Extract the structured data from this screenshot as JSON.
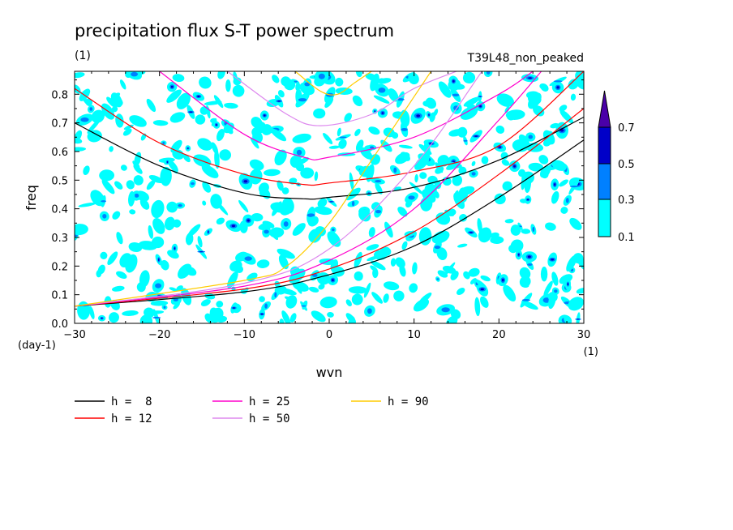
{
  "chart_data": {
    "type": "heatmap",
    "title": "precipitation flux S-T power spectrum",
    "subtitle_left": "(1)",
    "subtitle_right": "T39L48_non_peaked",
    "xlabel": "wvn",
    "ylabel": "freq",
    "x_unit": "(1)",
    "y_unit": "(day-1)",
    "xlim": [
      -30,
      30
    ],
    "ylim": [
      0,
      0.88
    ],
    "x_ticks": [
      -30,
      -20,
      -10,
      0,
      10,
      20,
      30
    ],
    "x_tick_labels": [
      "−30",
      "−20",
      "−10",
      "0",
      "10",
      "20",
      "30"
    ],
    "y_ticks": [
      0,
      0.1,
      0.2,
      0.3,
      0.4,
      0.5,
      0.6,
      0.7,
      0.8
    ],
    "y_tick_labels": [
      "0.0",
      "0.1",
      "0.2",
      "0.3",
      "0.4",
      "0.5",
      "0.6",
      "0.7",
      "0.8"
    ],
    "colorbar": {
      "levels": [
        "0.1",
        "0.3",
        "0.5",
        "0.7"
      ],
      "colors": [
        "#00ffff",
        "#0080ff",
        "#0000c8",
        "#4a00a8"
      ]
    },
    "curves": [
      {
        "name": "h =  8",
        "color": "#000000",
        "h": 8,
        "eig_x": [
          -30,
          -20,
          -10,
          -3,
          0,
          10,
          20,
          30
        ],
        "eig_y": [
          0.7,
          0.55,
          0.455,
          0.435,
          0.44,
          0.475,
          0.57,
          0.72
        ],
        "kelvin_x": [
          -30,
          -10,
          0,
          10,
          20,
          30
        ],
        "kelvin_y": [
          0.06,
          0.11,
          0.17,
          0.27,
          0.44,
          0.64
        ]
      },
      {
        "name": "h = 12",
        "color": "#ff0000",
        "h": 12,
        "eig_x": [
          -30,
          -20,
          -10,
          -3,
          0,
          10,
          20,
          30
        ],
        "eig_y": [
          0.82,
          0.63,
          0.52,
          0.485,
          0.49,
          0.53,
          0.62,
          0.88
        ],
        "kelvin_x": [
          -30,
          -10,
          0,
          10,
          20,
          30
        ],
        "kelvin_y": [
          0.06,
          0.12,
          0.19,
          0.32,
          0.52,
          0.75
        ]
      },
      {
        "name": "h = 25",
        "color": "#ff00cc",
        "h": 25,
        "eig_x": [
          -20,
          -10,
          -3,
          0,
          10,
          20,
          24
        ],
        "eig_y": [
          0.88,
          0.66,
          0.58,
          0.58,
          0.65,
          0.8,
          0.88
        ],
        "kelvin_x": [
          -30,
          -10,
          0,
          10,
          20,
          25
        ],
        "kelvin_y": [
          0.06,
          0.13,
          0.22,
          0.4,
          0.71,
          0.88
        ]
      },
      {
        "name": "h = 50",
        "color": "#dd88ee",
        "h": 50,
        "eig_x": [
          -12,
          -5,
          -1,
          5,
          10,
          15
        ],
        "eig_y": [
          0.88,
          0.73,
          0.69,
          0.73,
          0.82,
          0.88
        ],
        "kelvin_x": [
          -30,
          -10,
          0,
          10,
          18
        ],
        "kelvin_y": [
          0.06,
          0.14,
          0.26,
          0.55,
          0.88
        ]
      },
      {
        "name": "h = 90",
        "color": "#ffcc00",
        "h": 90,
        "eig_x": [
          -4,
          -1,
          1,
          3,
          5
        ],
        "eig_y": [
          0.88,
          0.81,
          0.8,
          0.84,
          0.88
        ],
        "kelvin_x": [
          -30,
          -10,
          -5,
          0,
          5,
          12
        ],
        "kelvin_y": [
          0.06,
          0.15,
          0.2,
          0.35,
          0.57,
          0.88
        ]
      }
    ]
  }
}
